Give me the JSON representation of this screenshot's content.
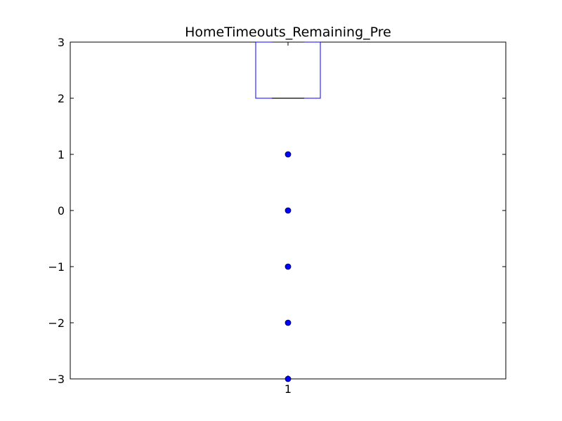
{
  "chart_data": {
    "type": "box",
    "title": "HomeTimeouts_Remaining_Pre",
    "xlabel": "",
    "ylabel": "",
    "ylim": [
      -3,
      3
    ],
    "yticks": [
      3,
      2,
      1,
      0,
      -1,
      -2,
      -3
    ],
    "ytick_labels": [
      "3",
      "2",
      "1",
      "0",
      "−1",
      "−2",
      "−3"
    ],
    "categories": [
      "1"
    ],
    "box": {
      "q1": 2,
      "median": 2,
      "q3": 3,
      "whisker_low": 2,
      "whisker_high": 3
    },
    "outliers": [
      1,
      0,
      -1,
      -2,
      -3
    ],
    "grid": false,
    "colors": {
      "box": "#0000ff",
      "median": "#000000",
      "whisker": "#0000ff",
      "outlier": "#0000ff",
      "axes": "#000000"
    }
  }
}
